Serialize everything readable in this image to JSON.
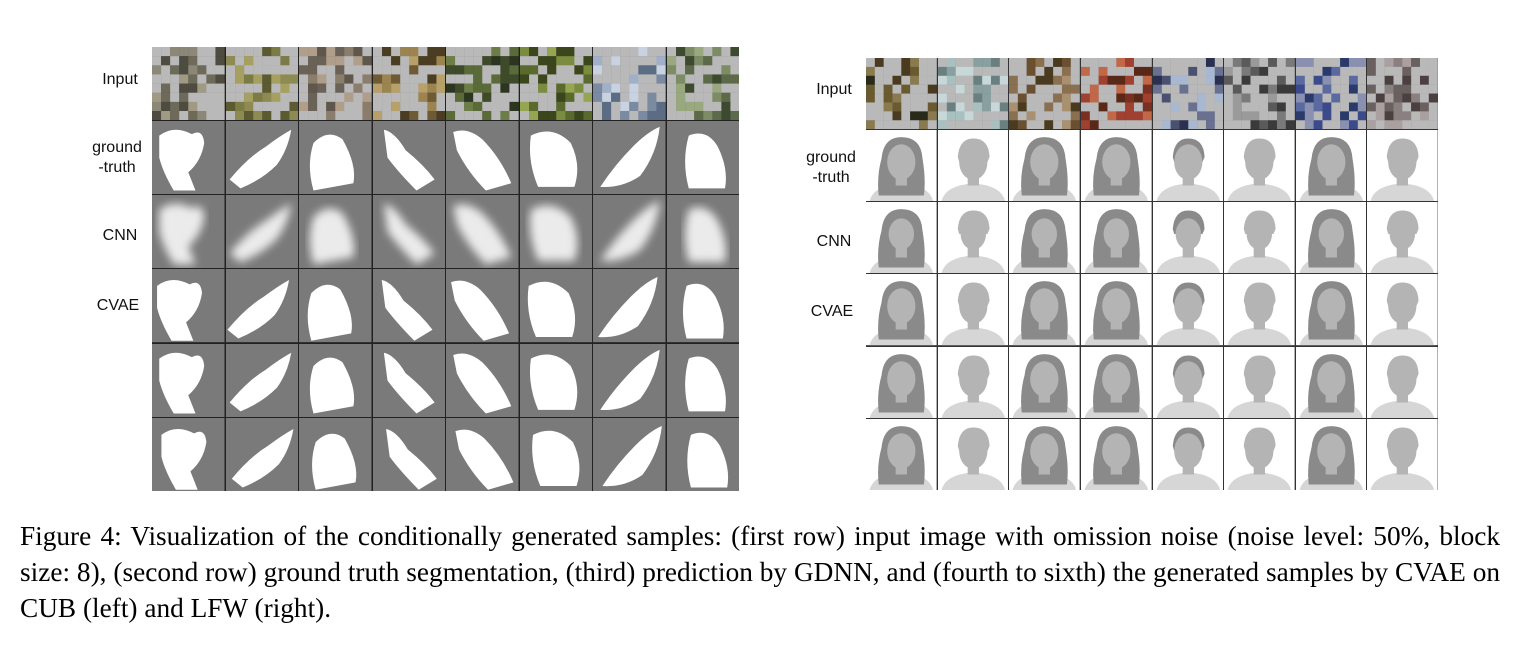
{
  "figure": {
    "left_panel": {
      "dataset": "CUB",
      "row_labels": [
        "Input",
        "ground\n-truth",
        "CNN",
        "CVAE"
      ],
      "columns": 8
    },
    "right_panel": {
      "dataset": "LFW",
      "row_labels": [
        "Input",
        "ground\n-truth",
        "CNN",
        "CVAE"
      ],
      "columns": 8
    },
    "caption": "Figure 4: Visualization of the conditionally generated samples: (first row) input image with omission noise (noise level: 50%, block size: 8), (second row) ground truth segmentation, (third) prediction by GDNN, and (fourth to sixth) the generated samples by CVAE on CUB (left) and LFW (right)."
  },
  "colors": {
    "mask_background": "#7a7a7a",
    "mask_foreground": "#ffffff",
    "face_background": "#ffffff",
    "face_hair": "#8a8a8a",
    "face_skin": "#b4b4b4",
    "face_clothes": "#d6d6d6"
  }
}
